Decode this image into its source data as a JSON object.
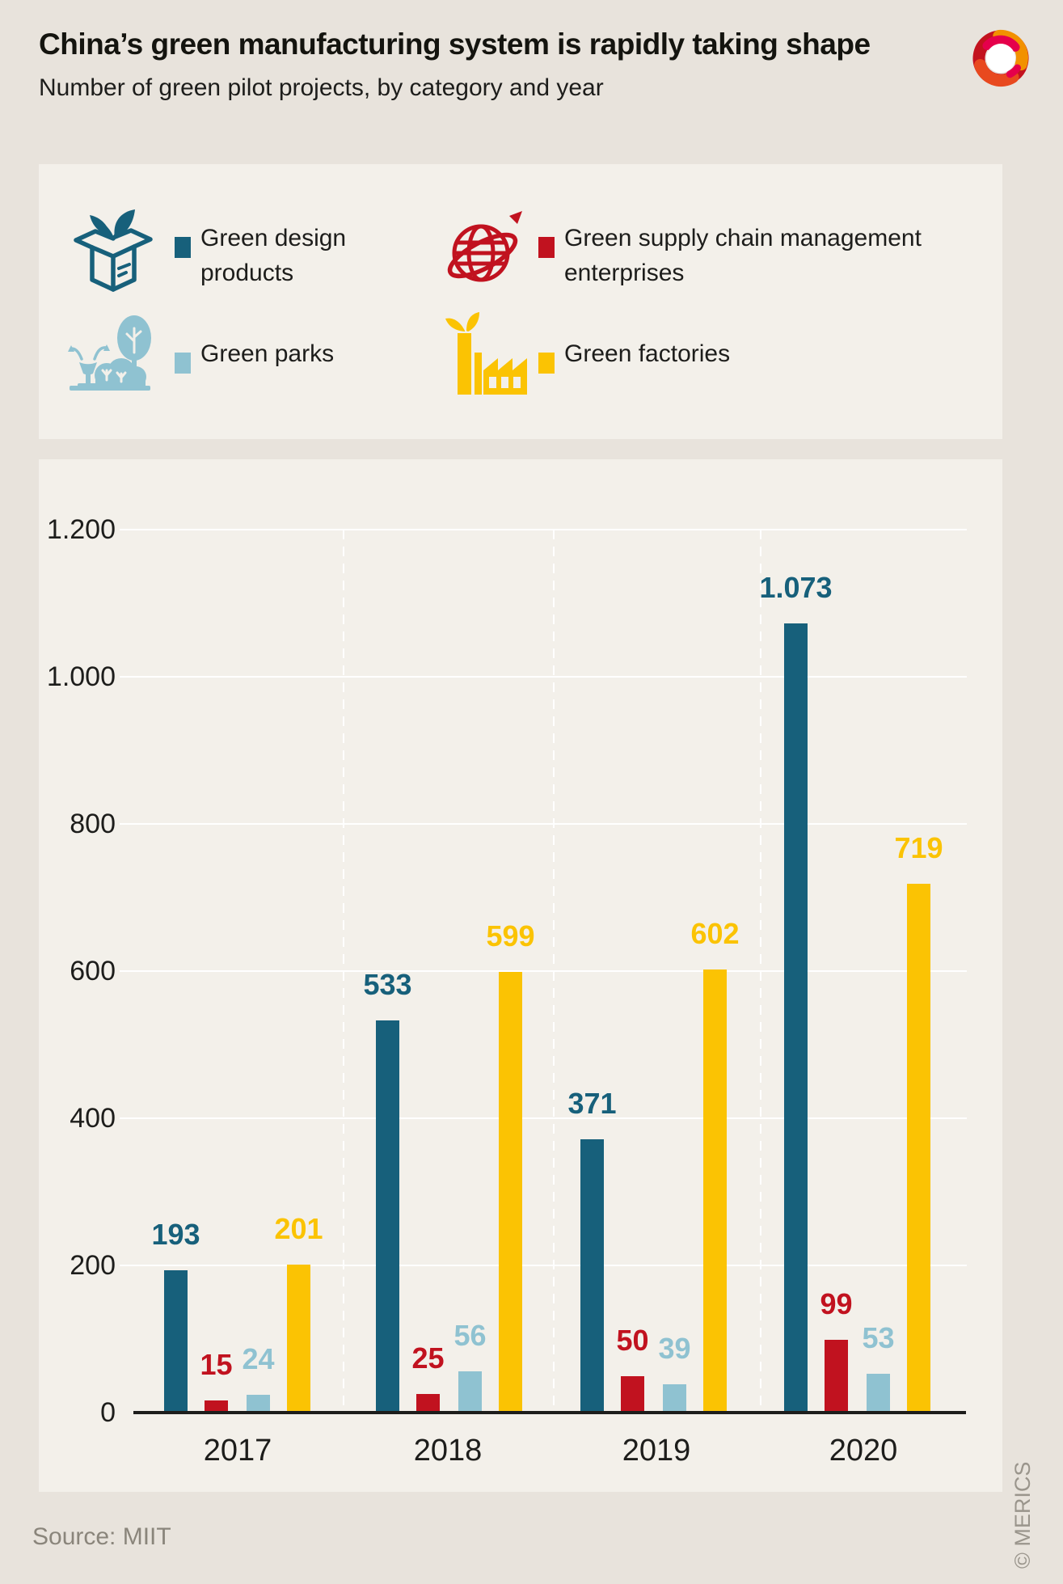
{
  "header": {
    "title": "China’s green manufacturing system is rapidly taking shape",
    "subtitle": "Number of green pilot projects, by category and year"
  },
  "legend": {
    "items": [
      {
        "label": "Green design products",
        "color": "#17607b",
        "icon": "open-box-with-leaves"
      },
      {
        "label": "Green supply chain management enterprises",
        "color": "#c1121f",
        "icon": "globe-with-orbit-arrow"
      },
      {
        "label": "Green parks",
        "color": "#8fc2d1",
        "icon": "park-trees-fountain"
      },
      {
        "label": "Green factories",
        "color": "#fbc303",
        "icon": "factory-with-leaf"
      }
    ]
  },
  "chart_data": {
    "type": "bar",
    "title": "Number of green pilot projects, by category and year",
    "categories": [
      "2017",
      "2018",
      "2019",
      "2020"
    ],
    "series": [
      {
        "name": "Green design products",
        "color": "#17607b",
        "values": [
          193,
          533,
          371,
          1073
        ],
        "labels": [
          "193",
          "533",
          "371",
          "1.073"
        ]
      },
      {
        "name": "Green supply chain management enterprises",
        "color": "#c1121f",
        "values": [
          15,
          25,
          50,
          99
        ],
        "labels": [
          "15",
          "25",
          "50",
          "99"
        ]
      },
      {
        "name": "Green parks",
        "color": "#8fc2d1",
        "values": [
          24,
          56,
          39,
          53
        ],
        "labels": [
          "24",
          "56",
          "39",
          "53"
        ]
      },
      {
        "name": "Green factories",
        "color": "#fbc303",
        "values": [
          201,
          599,
          602,
          719
        ],
        "labels": [
          "201",
          "599",
          "602",
          "719"
        ]
      }
    ],
    "y_axis": {
      "ticks": [
        "1.200",
        "1.000",
        "800",
        "600",
        "400",
        "200",
        "0"
      ],
      "tick_values": [
        1200,
        1000,
        800,
        600,
        400,
        200,
        0
      ],
      "ylim": [
        0,
        1200
      ]
    },
    "grid": true,
    "legend_position": "top"
  },
  "footer": {
    "source": "Source: MIIT",
    "copyright": "© MERICS"
  }
}
